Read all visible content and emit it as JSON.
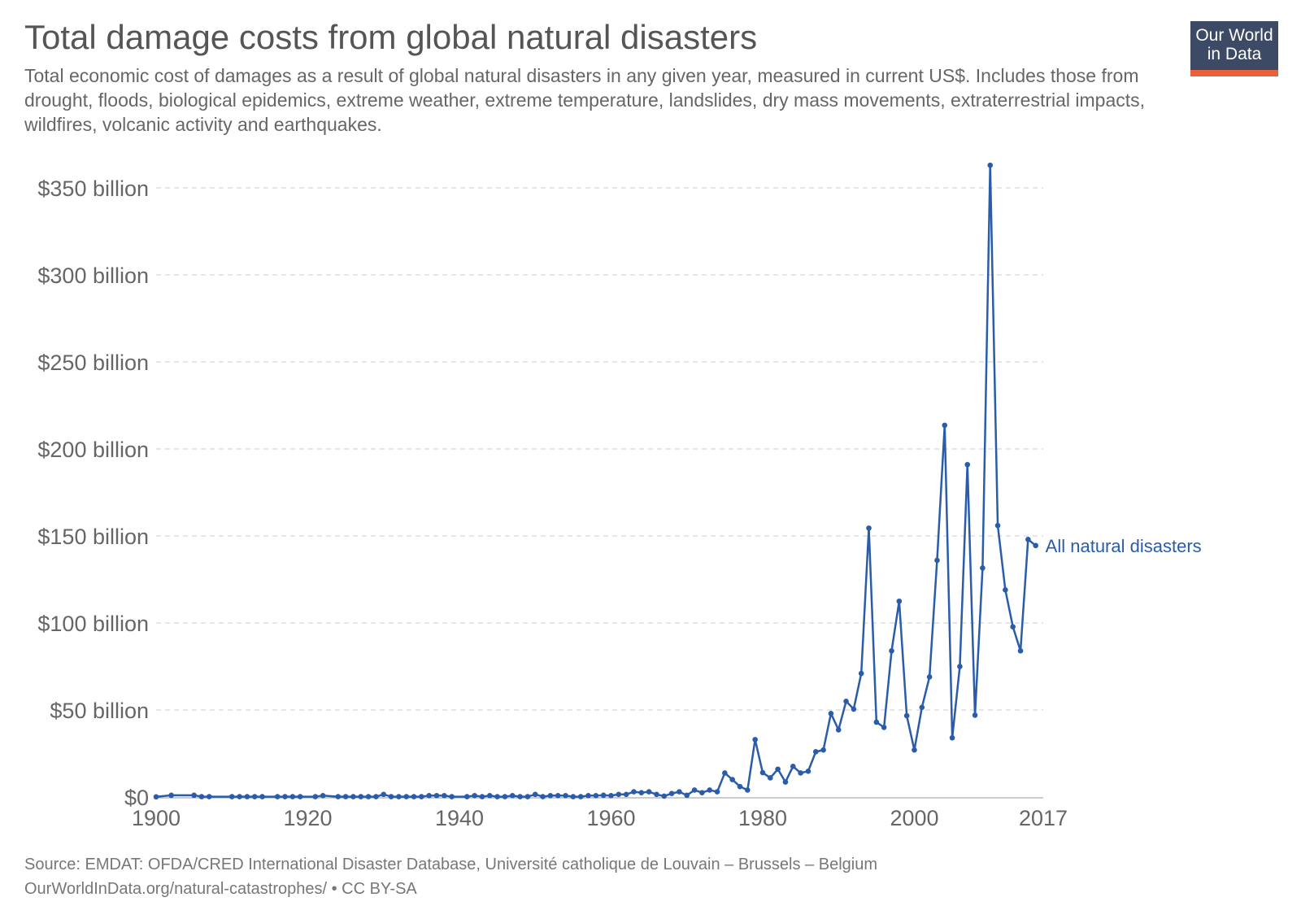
{
  "header": {
    "title": "Total damage costs from global natural disasters",
    "subtitle": "Total economic cost of damages as a result of global natural disasters in any given year, measured in current US$. Includes those from drought, floods, biological epidemics, extreme weather, extreme temperature, landslides, dry mass movements, extraterrestrial impacts, wildfires, volcanic activity and earthquakes.",
    "logo": "Our World in Data"
  },
  "footer": {
    "source": "Source: EMDAT: OFDA/CRED International Disaster Database, Université catholique de Louvain – Brussels – Belgium",
    "license": "OurWorldInData.org/natural-catastrophes/ • CC BY-SA"
  },
  "chart_data": {
    "type": "line",
    "xlim": [
      1900,
      2017
    ],
    "ylim": [
      0,
      350
    ],
    "grid": true,
    "x_ticks": [
      "1900",
      "1920",
      "1940",
      "1960",
      "1980",
      "2000",
      "2017"
    ],
    "y_ticks": [
      "$0",
      "$50 billion",
      "$100 billion",
      "$150 billion",
      "$200 billion",
      "$250 billion",
      "$300 billion",
      "$350 billion"
    ],
    "line_color": "#2a5caa",
    "series": [
      {
        "name": "All natural disasters",
        "unit": "billion US$",
        "points": [
          [
            1900,
            0.1
          ],
          [
            1902,
            1.0
          ],
          [
            1905,
            1.0
          ],
          [
            1906,
            0.2
          ],
          [
            1907,
            0.2
          ],
          [
            1910,
            0.2
          ],
          [
            1911,
            0.2
          ],
          [
            1912,
            0.2
          ],
          [
            1913,
            0.2
          ],
          [
            1914,
            0.2
          ],
          [
            1916,
            0.2
          ],
          [
            1917,
            0.2
          ],
          [
            1918,
            0.2
          ],
          [
            1919,
            0.2
          ],
          [
            1921,
            0.2
          ],
          [
            1922,
            0.8
          ],
          [
            1924,
            0.2
          ],
          [
            1925,
            0.2
          ],
          [
            1926,
            0.2
          ],
          [
            1927,
            0.2
          ],
          [
            1928,
            0.2
          ],
          [
            1929,
            0.2
          ],
          [
            1930,
            1.5
          ],
          [
            1931,
            0.2
          ],
          [
            1932,
            0.2
          ],
          [
            1933,
            0.2
          ],
          [
            1934,
            0.2
          ],
          [
            1935,
            0.2
          ],
          [
            1936,
            0.8
          ],
          [
            1937,
            0.8
          ],
          [
            1938,
            0.8
          ],
          [
            1939,
            0.2
          ],
          [
            1941,
            0.2
          ],
          [
            1942,
            0.8
          ],
          [
            1943,
            0.2
          ],
          [
            1944,
            0.8
          ],
          [
            1945,
            0.2
          ],
          [
            1946,
            0.2
          ],
          [
            1947,
            0.8
          ],
          [
            1948,
            0.2
          ],
          [
            1949,
            0.2
          ],
          [
            1950,
            1.5
          ],
          [
            1951,
            0.2
          ],
          [
            1952,
            0.8
          ],
          [
            1953,
            0.8
          ],
          [
            1954,
            0.8
          ],
          [
            1955,
            0.2
          ],
          [
            1956,
            0.2
          ],
          [
            1957,
            0.8
          ],
          [
            1958,
            0.8
          ],
          [
            1959,
            1.0
          ],
          [
            1960,
            0.8
          ],
          [
            1961,
            1.5
          ],
          [
            1962,
            1.5
          ],
          [
            1963,
            3.0
          ],
          [
            1964,
            2.5
          ],
          [
            1965,
            3.0
          ],
          [
            1966,
            1.5
          ],
          [
            1967,
            0.5
          ],
          [
            1968,
            2.0
          ],
          [
            1969,
            3.0
          ],
          [
            1970,
            1.0
          ],
          [
            1971,
            4.0
          ],
          [
            1972,
            2.5
          ],
          [
            1973,
            4.0
          ],
          [
            1974,
            3.0
          ],
          [
            1975,
            13.8
          ],
          [
            1976,
            10
          ],
          [
            1977,
            6
          ],
          [
            1978,
            4
          ],
          [
            1979,
            33
          ],
          [
            1980,
            14
          ],
          [
            1981,
            11
          ],
          [
            1982,
            16
          ],
          [
            1983,
            8.6
          ],
          [
            1984,
            17.6
          ],
          [
            1985,
            13.8
          ],
          [
            1986,
            14.8
          ],
          [
            1987,
            26
          ],
          [
            1988,
            27
          ],
          [
            1989,
            48
          ],
          [
            1990,
            38.6
          ],
          [
            1991,
            55
          ],
          [
            1992,
            50.5
          ],
          [
            1993,
            71
          ],
          [
            1994,
            154.5
          ],
          [
            1995,
            43
          ],
          [
            1996,
            40
          ],
          [
            1997,
            84
          ],
          [
            1998,
            112.5
          ],
          [
            1999,
            46.7
          ],
          [
            2000,
            27
          ],
          [
            2001,
            51.5
          ],
          [
            2002,
            69
          ],
          [
            2003,
            136
          ],
          [
            2004,
            213.6
          ],
          [
            2005,
            34
          ],
          [
            2006,
            75
          ],
          [
            2007,
            191
          ],
          [
            2008,
            47
          ],
          [
            2009,
            131.6
          ],
          [
            2010,
            363
          ],
          [
            2011,
            156
          ],
          [
            2012,
            119
          ],
          [
            2013,
            97.8
          ],
          [
            2014,
            84
          ],
          [
            2015,
            148
          ],
          [
            2016,
            144.5
          ]
        ]
      }
    ]
  }
}
